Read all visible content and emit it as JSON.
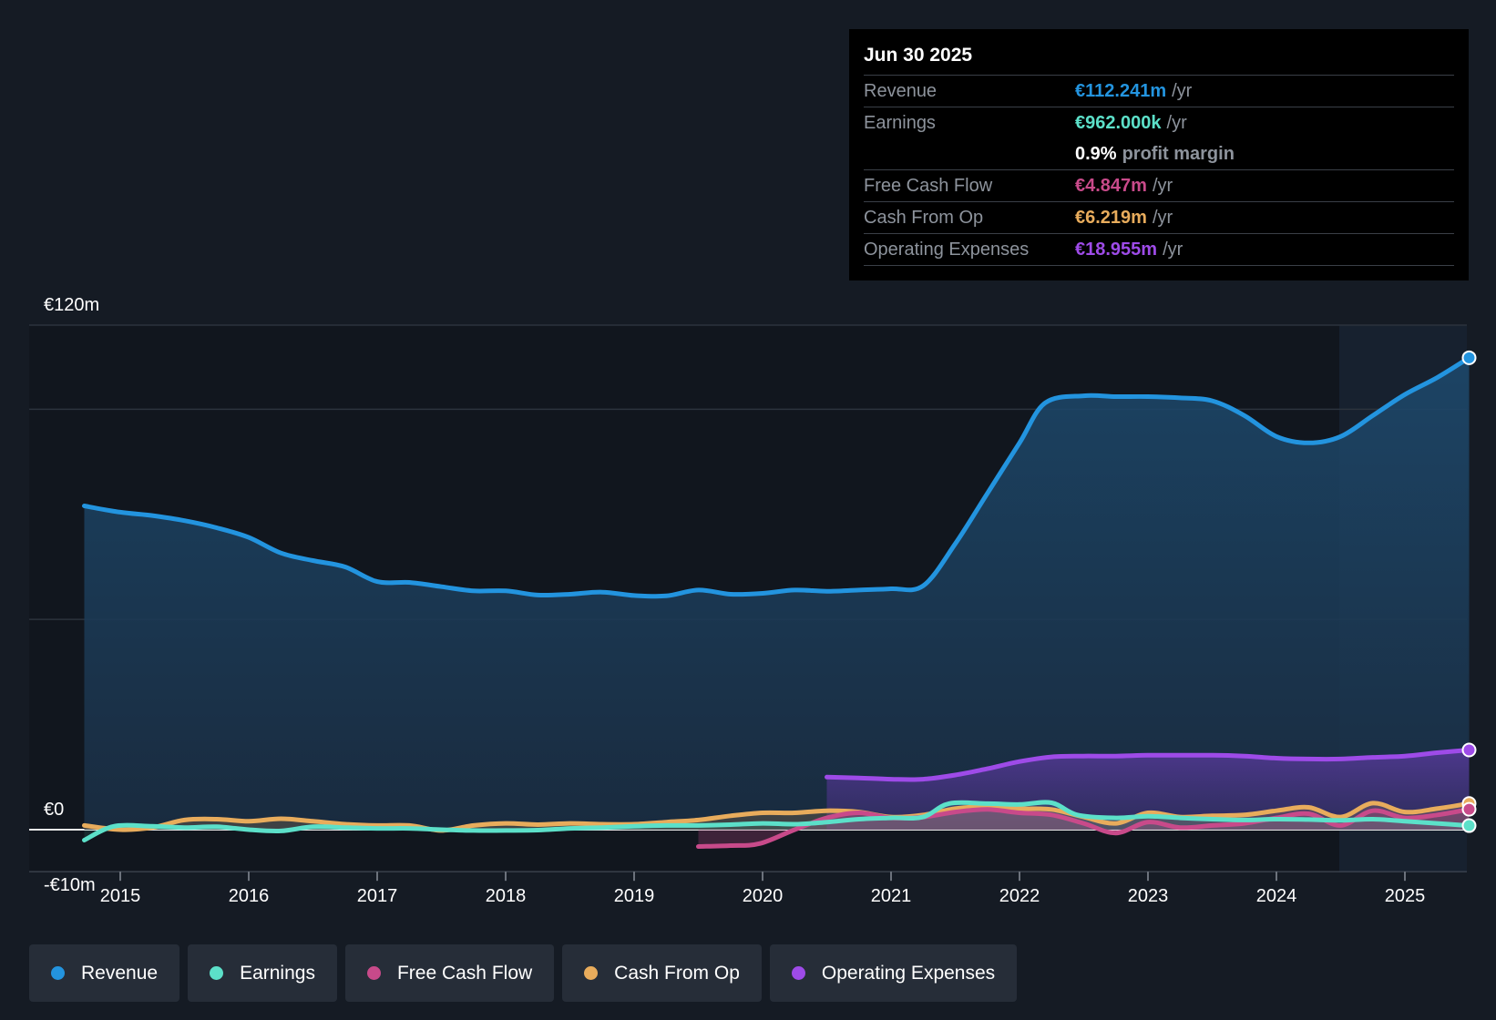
{
  "tooltip": {
    "date": "Jun 30 2025",
    "rows": {
      "revenue": {
        "label": "Revenue",
        "value": "€112.241m",
        "unit": "/yr",
        "color": "#2394df"
      },
      "earnings": {
        "label": "Earnings",
        "value": "€962.000k",
        "unit": "/yr",
        "color": "#5ce0c9"
      },
      "margin": {
        "value": "0.9%",
        "text": "profit margin"
      },
      "fcf": {
        "label": "Free Cash Flow",
        "value": "€4.847m",
        "unit": "/yr",
        "color": "#c84a8a"
      },
      "cfo": {
        "label": "Cash From Op",
        "value": "€6.219m",
        "unit": "/yr",
        "color": "#e8ac5c"
      },
      "opex": {
        "label": "Operating Expenses",
        "value": "€18.955m",
        "unit": "/yr",
        "color": "#9e4be8"
      }
    }
  },
  "legend": [
    {
      "label": "Revenue",
      "color": "#2394df"
    },
    {
      "label": "Earnings",
      "color": "#5ce0c9"
    },
    {
      "label": "Free Cash Flow",
      "color": "#c84a8a"
    },
    {
      "label": "Cash From Op",
      "color": "#e8ac5c"
    },
    {
      "label": "Operating Expenses",
      "color": "#9e4be8"
    }
  ],
  "chart_data": {
    "type": "line",
    "x_ticks": [
      "2015",
      "2016",
      "2017",
      "2018",
      "2019",
      "2020",
      "2021",
      "2022",
      "2023",
      "2024",
      "2025"
    ],
    "y_ticks": [
      "€120m",
      "€0",
      "-€10m"
    ],
    "ylim": [
      -10,
      120
    ],
    "xlim": [
      2014.3,
      2025.5
    ],
    "series": [
      {
        "name": "Revenue",
        "color": "#2394df",
        "points": [
          [
            2014.72,
            77
          ],
          [
            2015.0,
            75.5
          ],
          [
            2015.25,
            74.7
          ],
          [
            2015.5,
            73.5
          ],
          [
            2015.75,
            71.8
          ],
          [
            2016.0,
            69.5
          ],
          [
            2016.25,
            65.8
          ],
          [
            2016.5,
            64.0
          ],
          [
            2016.75,
            62.5
          ],
          [
            2017.0,
            59
          ],
          [
            2017.25,
            58.8
          ],
          [
            2017.5,
            57.8
          ],
          [
            2017.75,
            56.8
          ],
          [
            2018.0,
            56.8
          ],
          [
            2018.25,
            55.8
          ],
          [
            2018.5,
            56.0
          ],
          [
            2018.75,
            56.5
          ],
          [
            2019.0,
            55.7
          ],
          [
            2019.25,
            55.6
          ],
          [
            2019.5,
            57.0
          ],
          [
            2019.75,
            56.0
          ],
          [
            2020.0,
            56.2
          ],
          [
            2020.25,
            57.0
          ],
          [
            2020.5,
            56.7
          ],
          [
            2020.75,
            57.0
          ],
          [
            2021.0,
            57.3
          ],
          [
            2021.25,
            58.0
          ],
          [
            2021.5,
            68
          ],
          [
            2021.75,
            80
          ],
          [
            2022.0,
            92
          ],
          [
            2022.2,
            101.5
          ],
          [
            2022.5,
            103.2
          ],
          [
            2022.75,
            103.0
          ],
          [
            2023.0,
            103.0
          ],
          [
            2023.25,
            102.7
          ],
          [
            2023.5,
            102.0
          ],
          [
            2023.75,
            98.5
          ],
          [
            2024.0,
            93.5
          ],
          [
            2024.25,
            92.0
          ],
          [
            2024.5,
            93.5
          ],
          [
            2024.75,
            98.5
          ],
          [
            2025.0,
            103.5
          ],
          [
            2025.25,
            107.5
          ],
          [
            2025.5,
            112.241
          ]
        ]
      },
      {
        "name": "Earnings",
        "color": "#5ce0c9",
        "points": [
          [
            2014.72,
            -2.5
          ],
          [
            2014.95,
            0.8
          ],
          [
            2015.25,
            0.8
          ],
          [
            2015.5,
            0.5
          ],
          [
            2015.75,
            0.7
          ],
          [
            2016.0,
            0.0
          ],
          [
            2016.25,
            -0.3
          ],
          [
            2016.5,
            0.7
          ],
          [
            2016.75,
            0.5
          ],
          [
            2017.0,
            0.3
          ],
          [
            2017.25,
            0.3
          ],
          [
            2017.5,
            0.0
          ],
          [
            2017.75,
            -0.2
          ],
          [
            2018.0,
            -0.2
          ],
          [
            2018.25,
            -0.1
          ],
          [
            2018.5,
            0.3
          ],
          [
            2018.75,
            0.5
          ],
          [
            2019.0,
            0.8
          ],
          [
            2019.25,
            1.0
          ],
          [
            2019.5,
            1.0
          ],
          [
            2019.75,
            1.2
          ],
          [
            2020.0,
            1.5
          ],
          [
            2020.25,
            1.3
          ],
          [
            2020.5,
            1.8
          ],
          [
            2020.75,
            2.5
          ],
          [
            2021.0,
            2.8
          ],
          [
            2021.25,
            3.0
          ],
          [
            2021.45,
            6.2
          ],
          [
            2021.75,
            6.2
          ],
          [
            2022.0,
            6.0
          ],
          [
            2022.25,
            6.4
          ],
          [
            2022.45,
            3.5
          ],
          [
            2022.75,
            2.8
          ],
          [
            2023.0,
            3.2
          ],
          [
            2023.25,
            2.8
          ],
          [
            2023.5,
            2.5
          ],
          [
            2023.75,
            2.3
          ],
          [
            2024.0,
            2.5
          ],
          [
            2024.25,
            2.4
          ],
          [
            2024.5,
            2.2
          ],
          [
            2024.75,
            2.5
          ],
          [
            2025.0,
            2.0
          ],
          [
            2025.25,
            1.5
          ],
          [
            2025.5,
            0.962
          ]
        ]
      },
      {
        "name": "Free Cash Flow",
        "color": "#c84a8a",
        "points": [
          [
            2019.5,
            -4.0
          ],
          [
            2019.75,
            -3.8
          ],
          [
            2019.98,
            -3.3
          ],
          [
            2020.25,
            0.0
          ],
          [
            2020.5,
            2.8
          ],
          [
            2020.75,
            4.0
          ],
          [
            2021.0,
            2.8
          ],
          [
            2021.25,
            3.0
          ],
          [
            2021.5,
            4.2
          ],
          [
            2021.75,
            4.8
          ],
          [
            2022.0,
            4.0
          ],
          [
            2022.25,
            3.5
          ],
          [
            2022.5,
            1.5
          ],
          [
            2022.75,
            -0.8
          ],
          [
            2023.0,
            1.8
          ],
          [
            2023.25,
            0.5
          ],
          [
            2023.5,
            1.0
          ],
          [
            2023.75,
            1.5
          ],
          [
            2024.0,
            2.8
          ],
          [
            2024.25,
            3.8
          ],
          [
            2024.5,
            1.0
          ],
          [
            2024.75,
            4.5
          ],
          [
            2025.0,
            2.8
          ],
          [
            2025.25,
            3.5
          ],
          [
            2025.5,
            4.847
          ]
        ]
      },
      {
        "name": "Cash From Op",
        "color": "#e8ac5c",
        "points": [
          [
            2014.72,
            1.0
          ],
          [
            2015.0,
            0.0
          ],
          [
            2015.25,
            0.5
          ],
          [
            2015.5,
            2.3
          ],
          [
            2015.75,
            2.5
          ],
          [
            2016.0,
            2.0
          ],
          [
            2016.25,
            2.6
          ],
          [
            2016.5,
            2.0
          ],
          [
            2016.75,
            1.3
          ],
          [
            2017.0,
            1.0
          ],
          [
            2017.25,
            1.0
          ],
          [
            2017.5,
            -0.2
          ],
          [
            2017.75,
            1.0
          ],
          [
            2018.0,
            1.5
          ],
          [
            2018.25,
            1.2
          ],
          [
            2018.5,
            1.5
          ],
          [
            2018.75,
            1.3
          ],
          [
            2019.0,
            1.3
          ],
          [
            2019.25,
            1.8
          ],
          [
            2019.5,
            2.3
          ],
          [
            2019.75,
            3.3
          ],
          [
            2020.0,
            4.0
          ],
          [
            2020.25,
            4.0
          ],
          [
            2020.5,
            4.5
          ],
          [
            2020.75,
            4.2
          ],
          [
            2021.0,
            3.0
          ],
          [
            2021.25,
            3.5
          ],
          [
            2021.5,
            5.0
          ],
          [
            2021.75,
            5.5
          ],
          [
            2022.0,
            5.0
          ],
          [
            2022.25,
            4.8
          ],
          [
            2022.5,
            3.0
          ],
          [
            2022.75,
            1.5
          ],
          [
            2023.0,
            4.0
          ],
          [
            2023.25,
            3.0
          ],
          [
            2023.5,
            3.3
          ],
          [
            2023.75,
            3.5
          ],
          [
            2024.0,
            4.5
          ],
          [
            2024.25,
            5.3
          ],
          [
            2024.5,
            3.0
          ],
          [
            2024.75,
            6.3
          ],
          [
            2025.0,
            4.2
          ],
          [
            2025.25,
            5.0
          ],
          [
            2025.5,
            6.219
          ]
        ]
      },
      {
        "name": "Operating Expenses",
        "color": "#9e4be8",
        "points": [
          [
            2020.5,
            12.5
          ],
          [
            2020.75,
            12.3
          ],
          [
            2021.0,
            12.0
          ],
          [
            2021.25,
            12.0
          ],
          [
            2021.5,
            13.0
          ],
          [
            2021.75,
            14.5
          ],
          [
            2022.0,
            16.2
          ],
          [
            2022.25,
            17.3
          ],
          [
            2022.5,
            17.5
          ],
          [
            2022.75,
            17.5
          ],
          [
            2023.0,
            17.7
          ],
          [
            2023.25,
            17.7
          ],
          [
            2023.5,
            17.7
          ],
          [
            2023.75,
            17.5
          ],
          [
            2024.0,
            17.0
          ],
          [
            2024.25,
            16.8
          ],
          [
            2024.5,
            16.8
          ],
          [
            2024.75,
            17.2
          ],
          [
            2025.0,
            17.5
          ],
          [
            2025.25,
            18.3
          ],
          [
            2025.5,
            18.955
          ]
        ]
      }
    ]
  }
}
